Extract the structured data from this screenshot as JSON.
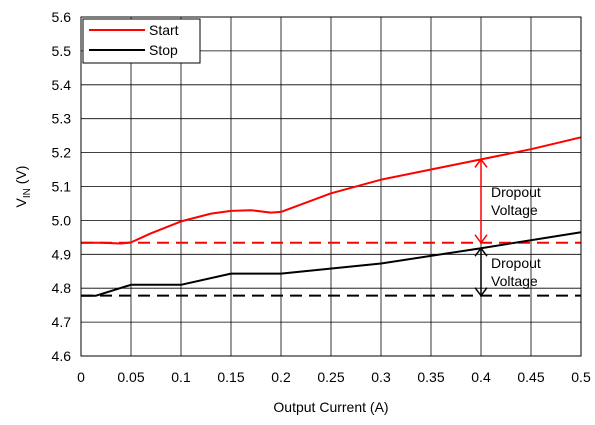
{
  "chart_data": {
    "type": "line",
    "xlabel": "Output Current (A)",
    "ylabel_main": "V",
    "ylabel_sub": "IN",
    "ylabel_unit": " (V)",
    "xlim": [
      0,
      0.5
    ],
    "ylim": [
      4.6,
      5.6
    ],
    "x_ticks": [
      "0",
      "0.05",
      "0.1",
      "0.15",
      "0.2",
      "0.25",
      "0.3",
      "0.35",
      "0.4",
      "0.45",
      "0.5"
    ],
    "y_ticks": [
      "4.6",
      "4.7",
      "4.8",
      "4.9",
      "5.0",
      "5.1",
      "5.2",
      "5.3",
      "5.4",
      "5.5",
      "5.6"
    ],
    "grid": true,
    "legend_position": "top-left",
    "series": [
      {
        "name": "Start",
        "color": "#ff0000",
        "x": [
          0,
          0.02,
          0.04,
          0.05,
          0.07,
          0.1,
          0.13,
          0.15,
          0.17,
          0.19,
          0.2,
          0.25,
          0.3,
          0.35,
          0.4,
          0.45,
          0.5
        ],
        "y": [
          4.934,
          4.934,
          4.932,
          4.935,
          4.962,
          4.997,
          5.02,
          5.028,
          5.03,
          5.023,
          5.025,
          5.08,
          5.12,
          5.15,
          5.18,
          5.21,
          5.245
        ]
      },
      {
        "name": "Stop",
        "color": "#000000",
        "x": [
          0,
          0.015,
          0.05,
          0.1,
          0.15,
          0.2,
          0.3,
          0.4,
          0.5
        ],
        "y": [
          4.778,
          4.778,
          4.81,
          4.81,
          4.843,
          4.843,
          4.873,
          4.918,
          4.965
        ]
      }
    ],
    "reference_lines": [
      {
        "y": 4.934,
        "color": "#ff0000",
        "style": "dashed"
      },
      {
        "y": 4.778,
        "color": "#000000",
        "style": "dashed"
      }
    ],
    "annotations": [
      {
        "line1": "Dropout",
        "line2": "Voltage",
        "x": 0.4,
        "y_from": 4.934,
        "y_to": 5.18,
        "color": "#ff0000"
      },
      {
        "line1": "Dropout",
        "line2": "Voltage",
        "x": 0.4,
        "y_from": 4.778,
        "y_to": 4.918,
        "color": "#000000"
      }
    ]
  }
}
